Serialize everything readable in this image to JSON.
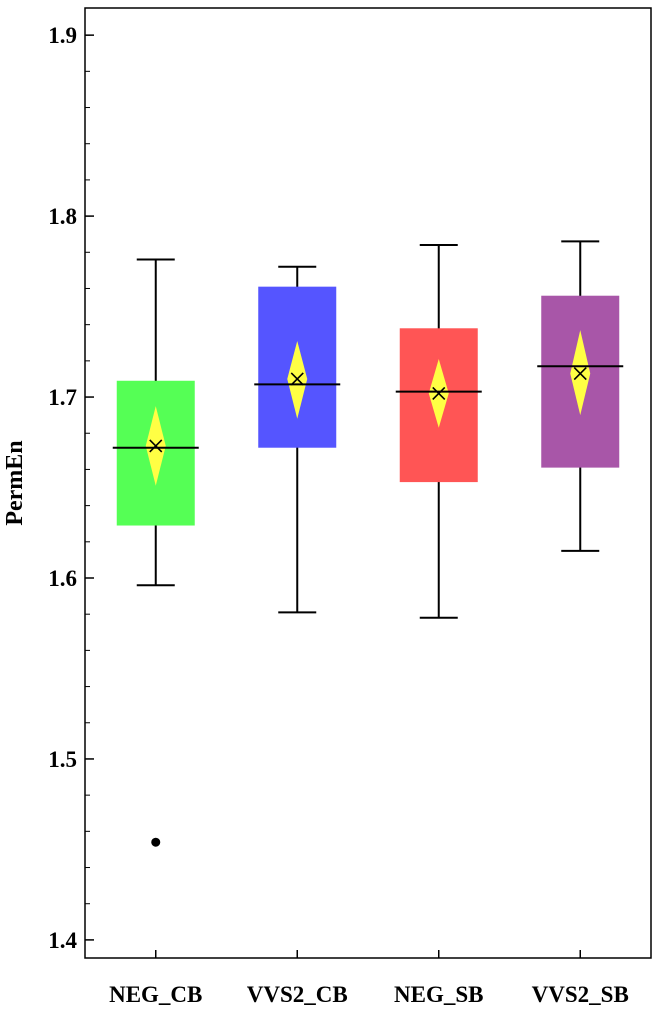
{
  "chart_data": {
    "type": "box",
    "title": "",
    "xlabel": "",
    "ylabel": "PermEn",
    "ylim": [
      1.39,
      1.915
    ],
    "yticks": [
      "1.4",
      "1.5",
      "1.6",
      "1.7",
      "1.8",
      "1.9"
    ],
    "grid": false,
    "categories": [
      "NEG_CB",
      "VVS2_CB",
      "NEG_SB",
      "VVS2_SB"
    ],
    "series": [
      {
        "category": "NEG_CB",
        "whisker_low": 1.596,
        "q1": 1.629,
        "median": 1.672,
        "q3": 1.709,
        "whisker_high": 1.776,
        "mean": 1.673,
        "mean_ci": [
          1.651,
          1.695
        ],
        "outliers": [
          1.454
        ],
        "color": "#55ff55"
      },
      {
        "category": "VVS2_CB",
        "whisker_low": 1.581,
        "q1": 1.672,
        "median": 1.707,
        "q3": 1.761,
        "whisker_high": 1.772,
        "mean": 1.71,
        "mean_ci": [
          1.688,
          1.731
        ],
        "outliers": [],
        "color": "#5555ff"
      },
      {
        "category": "NEG_SB",
        "whisker_low": 1.578,
        "q1": 1.653,
        "median": 1.703,
        "q3": 1.738,
        "whisker_high": 1.784,
        "mean": 1.702,
        "mean_ci": [
          1.683,
          1.721
        ],
        "outliers": [],
        "color": "#ff5555"
      },
      {
        "category": "VVS2_SB",
        "whisker_low": 1.615,
        "q1": 1.661,
        "median": 1.717,
        "q3": 1.756,
        "whisker_high": 1.786,
        "mean": 1.713,
        "mean_ci": [
          1.69,
          1.737
        ],
        "outliers": [],
        "color": "#a856a8"
      }
    ],
    "mean_marker_color": "#ffff44"
  }
}
